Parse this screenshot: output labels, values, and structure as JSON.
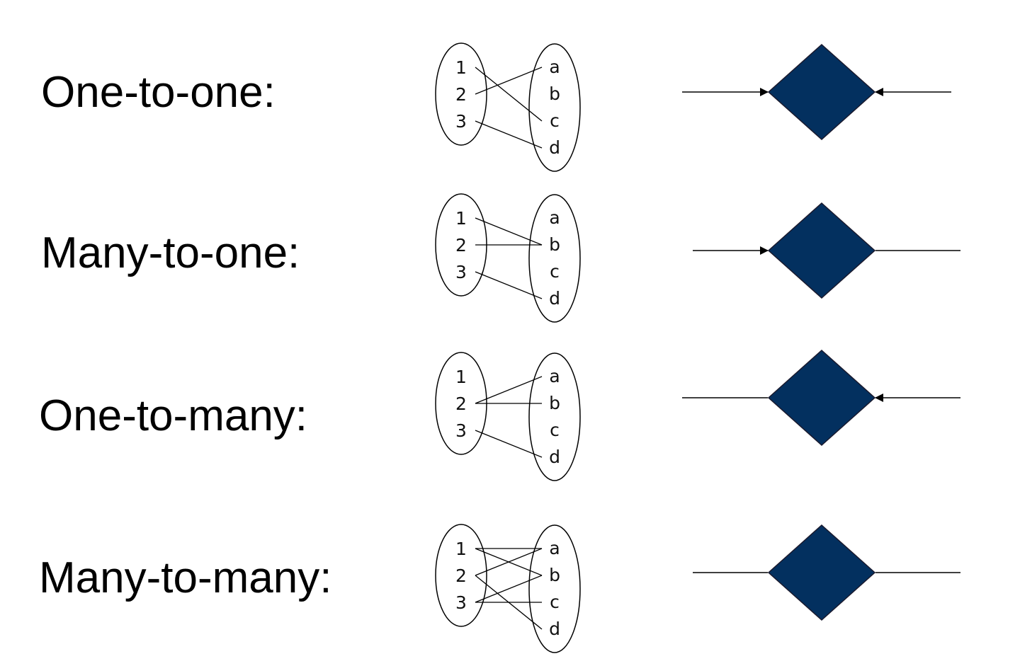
{
  "colors": {
    "diamond_fill": "#03305f",
    "stroke": "#000000",
    "background": "#ffffff"
  },
  "rows": [
    {
      "label": "One-to-one:",
      "left_set": [
        "1",
        "2",
        "3"
      ],
      "right_set": [
        "a",
        "b",
        "c",
        "d"
      ],
      "mappings": [
        [
          "1",
          "c"
        ],
        [
          "2",
          "a"
        ],
        [
          "3",
          "d"
        ]
      ],
      "left_arrow": true,
      "right_arrow": true
    },
    {
      "label": "Many-to-one:",
      "left_set": [
        "1",
        "2",
        "3"
      ],
      "right_set": [
        "a",
        "b",
        "c",
        "d"
      ],
      "mappings": [
        [
          "1",
          "b"
        ],
        [
          "2",
          "b"
        ],
        [
          "3",
          "d"
        ]
      ],
      "left_arrow": true,
      "right_arrow": false
    },
    {
      "label": "One-to-many:",
      "left_set": [
        "1",
        "2",
        "3"
      ],
      "right_set": [
        "a",
        "b",
        "c",
        "d"
      ],
      "mappings": [
        [
          "2",
          "a"
        ],
        [
          "2",
          "b"
        ],
        [
          "3",
          "d"
        ]
      ],
      "left_arrow": false,
      "right_arrow": true
    },
    {
      "label": "Many-to-many:",
      "left_set": [
        "1",
        "2",
        "3"
      ],
      "right_set": [
        "a",
        "b",
        "c",
        "d"
      ],
      "mappings": [
        [
          "1",
          "a"
        ],
        [
          "1",
          "b"
        ],
        [
          "2",
          "a"
        ],
        [
          "2",
          "d"
        ],
        [
          "3",
          "b"
        ],
        [
          "3",
          "c"
        ]
      ],
      "left_arrow": false,
      "right_arrow": false
    }
  ]
}
